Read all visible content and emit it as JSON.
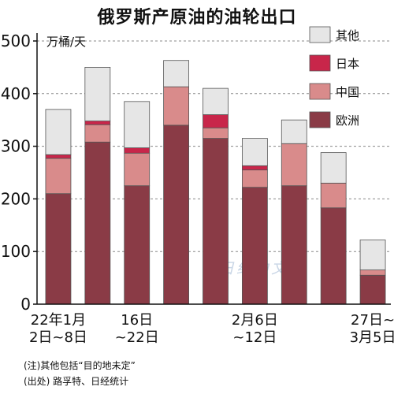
{
  "title": "俄罗斯产原油的油轮出口",
  "unit_label": "万桶/天",
  "watermark": "日经中文网",
  "notes": [
    "(注)其他包括“目的地未定”",
    "(出处) 路孚特、日经统计"
  ],
  "colors": {
    "europe": "#8a3b46",
    "china": "#d98b8b",
    "japan": "#c8264a",
    "other": "#e6e6e6",
    "border": "#555555"
  },
  "chart_data": {
    "type": "bar",
    "stacked": true,
    "title": "俄罗斯产原油的油轮出口",
    "ylabel": "万桶/天",
    "ylim": [
      0,
      500
    ],
    "yticks": [
      0,
      100,
      200,
      300,
      400,
      500
    ],
    "grid": true,
    "legend_position": "top-right",
    "categories": [
      "22年1月2日~8日",
      "",
      "16日~22日",
      "",
      "",
      "2月6日~12日",
      "",
      "",
      "27日~3月5日"
    ],
    "x_tick_labels": [
      {
        "index": 0,
        "lines": [
          "22年1月",
          "2日~8日"
        ]
      },
      {
        "index": 2,
        "lines": [
          "16日",
          "~22日"
        ]
      },
      {
        "index": 5,
        "lines": [
          "2月6日",
          "~12日"
        ]
      },
      {
        "index": 8,
        "lines": [
          "27日~",
          "3月5日"
        ]
      }
    ],
    "series": [
      {
        "name": "欧洲",
        "key": "europe",
        "values": [
          210,
          308,
          225,
          340,
          315,
          222,
          225,
          183,
          55
        ]
      },
      {
        "name": "中国",
        "key": "china",
        "values": [
          67,
          33,
          62,
          73,
          20,
          33,
          80,
          47,
          10
        ]
      },
      {
        "name": "日本",
        "key": "japan",
        "values": [
          7,
          7,
          10,
          0,
          25,
          8,
          0,
          0,
          0
        ]
      },
      {
        "name": "其他",
        "key": "other",
        "values": [
          86,
          102,
          88,
          50,
          50,
          52,
          45,
          58,
          57
        ]
      }
    ],
    "legend_order": [
      "其他",
      "日本",
      "中国",
      "欧洲"
    ]
  }
}
